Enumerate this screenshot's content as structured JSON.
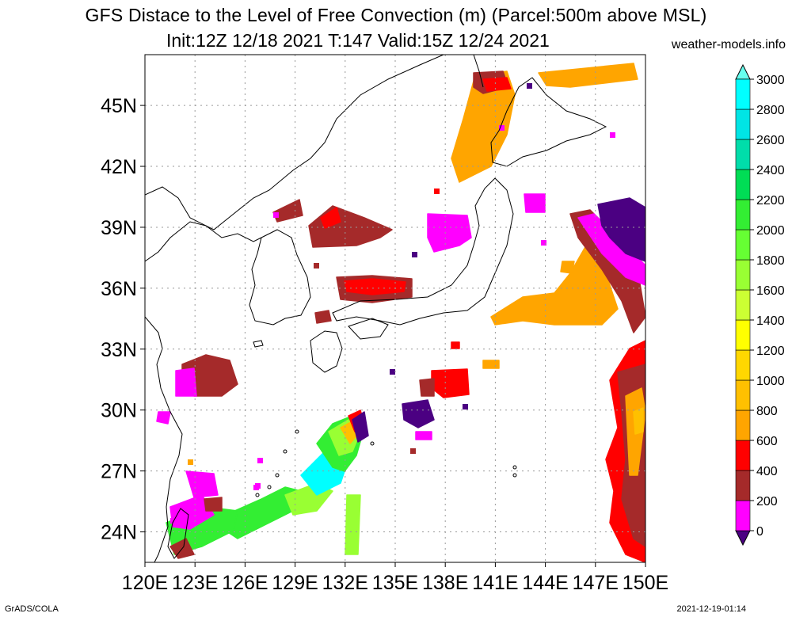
{
  "title": "GFS Distace to the Level of Free Convection (m) (Parcel:500m above MSL)",
  "subtitle": "Init:12Z 12/18 2021 T:147 Valid:15Z 12/24 2021",
  "site": "weather-models.info",
  "footer_left": "GrADS/COLA",
  "footer_right": "2021-12-19-01:14",
  "map": {
    "lon_range": [
      120,
      150
    ],
    "lat_range": [
      22.5,
      47.5
    ],
    "lon_labels": [
      "120E",
      "123E",
      "126E",
      "129E",
      "132E",
      "135E",
      "138E",
      "141E",
      "144E",
      "147E",
      "150E"
    ],
    "lon_ticks": [
      120,
      123,
      126,
      129,
      132,
      135,
      138,
      141,
      144,
      147,
      150
    ],
    "lat_labels": [
      "24N",
      "27N",
      "30N",
      "33N",
      "36N",
      "39N",
      "42N",
      "45N"
    ],
    "lat_ticks": [
      24,
      27,
      30,
      33,
      36,
      39,
      42,
      45
    ],
    "grid": "dotted"
  },
  "colorbar": {
    "levels": [
      "0",
      "200",
      "400",
      "600",
      "800",
      "1000",
      "1200",
      "1400",
      "1600",
      "1800",
      "2000",
      "2200",
      "2400",
      "2600",
      "2800",
      "3000"
    ],
    "colors": [
      "#4b0082",
      "#ff00ff",
      "#a52a2a",
      "#ff0000",
      "#ffa500",
      "#ffc000",
      "#ffd700",
      "#ffff00",
      "#ccff33",
      "#99ff33",
      "#66ff33",
      "#33ee33",
      "#00dd55",
      "#00ddaa",
      "#00e5e5",
      "#00ffff",
      "#66ffee"
    ]
  }
}
